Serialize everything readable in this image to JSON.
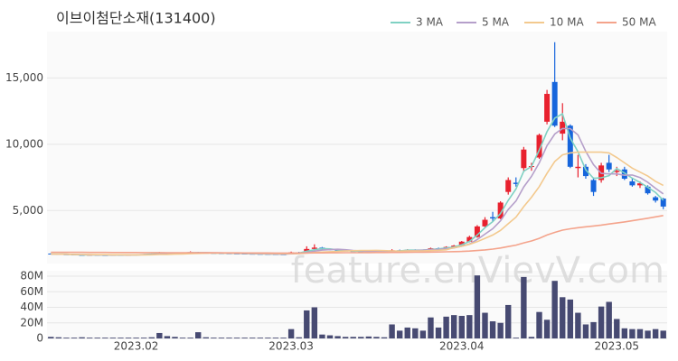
{
  "watermark": "feature.enVievV.com",
  "chart_data": [
    {
      "type": "candlestick",
      "title": "이브이첨단소재(131400)",
      "legend": "top-right",
      "up_color": "#e8212e",
      "down_color": "#1665dc",
      "ylim": [
        1000,
        18500
      ],
      "yticks": [
        {
          "value": 5000,
          "label": "5,000"
        },
        {
          "value": 10000,
          "label": "10,000"
        },
        {
          "value": 15000,
          "label": "15,000"
        }
      ],
      "grid": true,
      "open": [
        1750,
        1720,
        1700,
        1680,
        1650,
        1640,
        1660,
        1640,
        1630,
        1650,
        1640,
        1650,
        1680,
        1700,
        1740,
        1820,
        1780,
        1800,
        1780,
        1860,
        1810,
        1790,
        1780,
        1770,
        1760,
        1750,
        1740,
        1730,
        1720,
        1710,
        1700,
        1690,
        1850,
        1830,
        2100,
        2200,
        2080,
        2020,
        1980,
        1940,
        1920,
        1900,
        1880,
        1870,
        1880,
        2000,
        1980,
        2040,
        2000,
        2030,
        2150,
        2120,
        2250,
        2350,
        2650,
        3000,
        3800,
        4500,
        4400,
        6400,
        7100,
        8200,
        8300,
        9000,
        11700,
        14700,
        10800,
        11400,
        8200,
        8300,
        7300,
        7300,
        8600,
        7900,
        8100,
        7200,
        6900,
        6800,
        6000,
        5900
      ],
      "high": [
        1780,
        1740,
        1720,
        1700,
        1680,
        1670,
        1680,
        1660,
        1660,
        1670,
        1670,
        1690,
        1720,
        1760,
        1880,
        1850,
        1820,
        1830,
        1920,
        1880,
        1830,
        1810,
        1800,
        1790,
        1780,
        1770,
        1760,
        1750,
        1740,
        1730,
        1720,
        1900,
        1880,
        2300,
        2450,
        2250,
        2120,
        2050,
        2000,
        1970,
        1950,
        1940,
        1910,
        1900,
        2080,
        2050,
        2080,
        2070,
        2050,
        2200,
        2200,
        2300,
        2400,
        2700,
        3100,
        3900,
        4500,
        4900,
        5700,
        7500,
        7500,
        9800,
        8600,
        10800,
        14100,
        17700,
        13100,
        11500,
        9200,
        8500,
        7500,
        8600,
        9200,
        8300,
        8300,
        7400,
        7200,
        6900,
        6100,
        5950
      ],
      "low": [
        1700,
        1680,
        1660,
        1640,
        1620,
        1610,
        1630,
        1610,
        1600,
        1620,
        1610,
        1630,
        1650,
        1680,
        1720,
        1760,
        1750,
        1760,
        1760,
        1790,
        1770,
        1760,
        1750,
        1740,
        1730,
        1720,
        1710,
        1700,
        1690,
        1680,
        1670,
        1680,
        1800,
        1820,
        2050,
        2050,
        2000,
        1950,
        1920,
        1900,
        1880,
        1860,
        1850,
        1840,
        1860,
        1950,
        1960,
        1980,
        1970,
        2010,
        2080,
        2100,
        2200,
        2300,
        2600,
        2950,
        3700,
        4200,
        4350,
        6200,
        6800,
        8000,
        8000,
        8900,
        11500,
        11300,
        10300,
        8200,
        7500,
        7400,
        6100,
        7100,
        7900,
        7600,
        7300,
        6800,
        6700,
        6200,
        5600,
        5100
      ],
      "close": [
        1720,
        1700,
        1680,
        1650,
        1640,
        1660,
        1640,
        1630,
        1650,
        1640,
        1650,
        1680,
        1700,
        1740,
        1820,
        1780,
        1800,
        1780,
        1860,
        1810,
        1790,
        1780,
        1770,
        1760,
        1750,
        1740,
        1730,
        1720,
        1710,
        1700,
        1690,
        1850,
        1830,
        2100,
        2200,
        2080,
        2020,
        1980,
        1940,
        1920,
        1900,
        1880,
        1870,
        1880,
        2000,
        1980,
        2040,
        2000,
        2030,
        2150,
        2120,
        2250,
        2350,
        2650,
        3000,
        3800,
        4300,
        4400,
        5600,
        7300,
        7000,
        9600,
        8350,
        10700,
        13800,
        11400,
        11700,
        8300,
        8300,
        7600,
        6400,
        8400,
        8100,
        8000,
        7400,
        6900,
        7050,
        6300,
        5750,
        5300
      ],
      "series": [
        {
          "name": "3 MA",
          "color": "#7fd1c3",
          "values": [
            1720,
            1710,
            1700,
            1677,
            1657,
            1650,
            1647,
            1643,
            1640,
            1640,
            1647,
            1657,
            1677,
            1707,
            1753,
            1780,
            1800,
            1787,
            1813,
            1817,
            1820,
            1793,
            1780,
            1770,
            1760,
            1750,
            1740,
            1730,
            1720,
            1710,
            1700,
            1747,
            1790,
            1927,
            2043,
            2127,
            2100,
            2027,
            1980,
            1947,
            1920,
            1900,
            1883,
            1877,
            1917,
            1953,
            2007,
            2007,
            2023,
            2060,
            2100,
            2173,
            2240,
            2417,
            2667,
            3150,
            3700,
            4167,
            4767,
            5767,
            6633,
            7967,
            8317,
            9550,
            10950,
            11967,
            12300,
            10467,
            9433,
            8067,
            7433,
            7467,
            7633,
            8167,
            7833,
            7433,
            7117,
            6750,
            6367,
            5783
          ]
        },
        {
          "name": "5 MA",
          "color": "#b59fca",
          "values": [
            1720,
            1710,
            1700,
            1688,
            1678,
            1666,
            1654,
            1644,
            1644,
            1644,
            1642,
            1650,
            1664,
            1682,
            1718,
            1744,
            1768,
            1784,
            1808,
            1806,
            1808,
            1804,
            1802,
            1782,
            1770,
            1760,
            1750,
            1740,
            1730,
            1720,
            1710,
            1734,
            1756,
            1834,
            1934,
            2012,
            2046,
            2076,
            2044,
            1988,
            1952,
            1924,
            1902,
            1890,
            1906,
            1922,
            1954,
            1980,
            2010,
            2040,
            2068,
            2110,
            2180,
            2304,
            2474,
            2810,
            3220,
            3630,
            4220,
            5080,
            5720,
            6780,
            7570,
            8590,
            9890,
            10770,
            11190,
            11180,
            10700,
            9460,
            8460,
            7800,
            7760,
            7760,
            7660,
            7680,
            7490,
            7130,
            6680,
            6260
          ]
        },
        {
          "name": "10 MA",
          "color": "#f3c98e",
          "values": [
            1720,
            1710,
            1700,
            1690,
            1680,
            1675,
            1670,
            1665,
            1662,
            1660,
            1653,
            1651,
            1653,
            1662,
            1679,
            1691,
            1707,
            1722,
            1743,
            1760,
            1774,
            1784,
            1791,
            1793,
            1786,
            1782,
            1775,
            1769,
            1762,
            1751,
            1741,
            1748,
            1754,
            1787,
            1832,
            1866,
            1895,
            1921,
            1944,
            1966,
            1987,
            1990,
            1994,
            1972,
            1952,
            1942,
            1944,
            1946,
            1955,
            1978,
            1999,
            2036,
            2200,
            2300,
            2450,
            2650,
            2900,
            3150,
            3500,
            4000,
            4500,
            5300,
            6000,
            6800,
            7800,
            8700,
            9200,
            9350,
            9400,
            9400,
            9400,
            9400,
            9350,
            9000,
            8600,
            8200,
            7900,
            7600,
            7200,
            6900
          ]
        },
        {
          "name": "50 MA",
          "color": "#f4a38b",
          "values": [
            1850,
            1848,
            1846,
            1844,
            1842,
            1840,
            1838,
            1836,
            1834,
            1832,
            1830,
            1828,
            1826,
            1824,
            1822,
            1820,
            1818,
            1816,
            1814,
            1812,
            1810,
            1808,
            1806,
            1804,
            1802,
            1800,
            1798,
            1796,
            1794,
            1792,
            1790,
            1792,
            1794,
            1798,
            1802,
            1806,
            1810,
            1813,
            1816,
            1819,
            1822,
            1825,
            1828,
            1831,
            1836,
            1840,
            1846,
            1852,
            1858,
            1866,
            1874,
            1884,
            1896,
            1914,
            1940,
            1980,
            2030,
            2090,
            2170,
            2280,
            2390,
            2560,
            2700,
            2900,
            3150,
            3350,
            3520,
            3620,
            3700,
            3770,
            3830,
            3900,
            3980,
            4060,
            4140,
            4230,
            4320,
            4420,
            4520,
            4620
          ]
        }
      ]
    },
    {
      "type": "bar",
      "color": "#474a72",
      "categories": [
        null,
        null,
        null,
        null,
        null,
        null,
        null,
        null,
        null,
        null,
        null,
        "2023.02",
        null,
        null,
        null,
        null,
        null,
        null,
        null,
        null,
        null,
        null,
        null,
        null,
        null,
        null,
        null,
        null,
        null,
        null,
        null,
        "2023.03",
        null,
        null,
        null,
        null,
        null,
        null,
        null,
        null,
        null,
        null,
        null,
        null,
        null,
        null,
        null,
        null,
        null,
        null,
        null,
        null,
        null,
        "2023.04",
        null,
        null,
        null,
        null,
        null,
        null,
        null,
        null,
        null,
        null,
        null,
        null,
        null,
        null,
        null,
        null,
        null,
        null,
        null,
        "2023.05",
        null,
        null,
        null,
        null,
        null,
        null
      ],
      "values": [
        2000000,
        1500000,
        1000000,
        1000000,
        1500000,
        1000000,
        1000000,
        1000000,
        1000000,
        1000000,
        1000000,
        1000000,
        1000000,
        1500000,
        7000000,
        3000000,
        2000000,
        1000000,
        1000000,
        8000000,
        1500000,
        1000000,
        1000000,
        1000000,
        1000000,
        1000000,
        1000000,
        1000000,
        1000000,
        1000000,
        1000000,
        12000000,
        1500000,
        36000000,
        40000000,
        5000000,
        4000000,
        3000000,
        2000000,
        2000000,
        2000000,
        2500000,
        2000000,
        1500000,
        18000000,
        10000000,
        14000000,
        13000000,
        10000000,
        27000000,
        14000000,
        28000000,
        30000000,
        29000000,
        30000000,
        81000000,
        33000000,
        22000000,
        20000000,
        43000000,
        1000000,
        79000000,
        2000000,
        34000000,
        24000000,
        74000000,
        53000000,
        50000000,
        33000000,
        18000000,
        21000000,
        41000000,
        47000000,
        25000000,
        13000000,
        12000000,
        12000000,
        10000000,
        12000000,
        10000000
      ],
      "ylim": [
        0,
        87000000
      ],
      "yticks": [
        0,
        {
          "value": 20000000,
          "label": "20M"
        },
        {
          "value": 40000000,
          "label": "40M"
        },
        {
          "value": 60000000,
          "label": "60M"
        },
        {
          "value": 80000000,
          "label": "80M"
        }
      ],
      "grid": true
    }
  ]
}
